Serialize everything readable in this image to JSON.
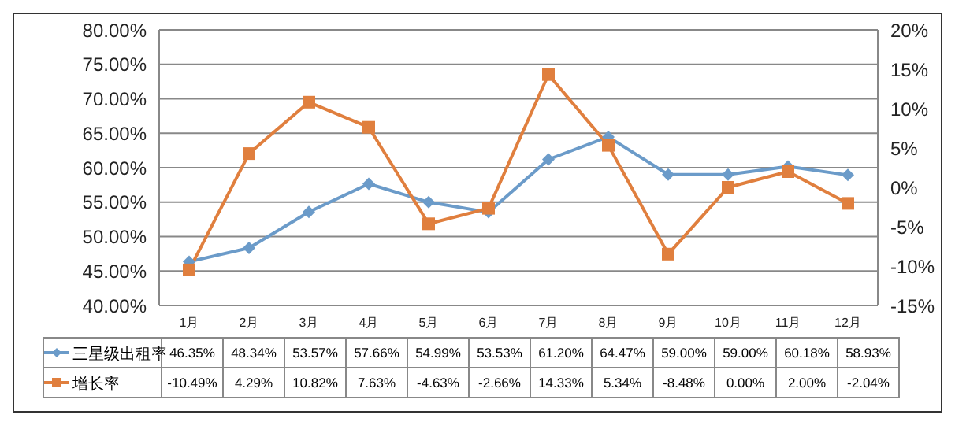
{
  "chart_data": {
    "type": "line",
    "categories": [
      "1月",
      "2月",
      "3月",
      "4月",
      "5月",
      "6月",
      "7月",
      "8月",
      "9月",
      "10月",
      "11月",
      "12月"
    ],
    "series": [
      {
        "name": "三星级出租率",
        "color": "#6b9bc9",
        "marker": "diamond",
        "values": [
          46.35,
          48.34,
          53.57,
          57.66,
          54.99,
          53.53,
          61.2,
          64.47,
          59.0,
          59.0,
          60.18,
          58.93
        ],
        "value_labels": [
          "46.35%",
          "48.34%",
          "53.57%",
          "57.66%",
          "54.99%",
          "53.53%",
          "61.20%",
          "64.47%",
          "59.00%",
          "59.00%",
          "60.18%",
          "58.93%"
        ]
      },
      {
        "name": "增长率",
        "color": "#e07f3e",
        "marker": "square",
        "axis": "y2",
        "values": [
          -10.49,
          4.29,
          10.82,
          7.63,
          -4.63,
          -2.66,
          14.33,
          5.34,
          -8.48,
          0.0,
          2.0,
          -2.04
        ],
        "value_labels": [
          "-10.49%",
          "4.29%",
          "10.82%",
          "7.63%",
          "-4.63%",
          "-2.66%",
          "14.33%",
          "5.34%",
          "-8.48%",
          "0.00%",
          "2.00%",
          "-2.04%"
        ]
      }
    ],
    "ylim": [
      40,
      80
    ],
    "yticks": [
      {
        "value": 40,
        "label": "40.00%"
      },
      {
        "value": 45,
        "label": "45.00%"
      },
      {
        "value": 50,
        "label": "50.00%"
      },
      {
        "value": 55,
        "label": "55.00%"
      },
      {
        "value": 60,
        "label": "60.00%"
      },
      {
        "value": 65,
        "label": "65.00%"
      },
      {
        "value": 70,
        "label": "70.00%"
      },
      {
        "value": 75,
        "label": "75.00%"
      },
      {
        "value": 80,
        "label": "80.00%"
      }
    ],
    "y2lim": [
      -15,
      20
    ],
    "y2ticks": [
      {
        "value": -15,
        "label": "-15%"
      },
      {
        "value": -10,
        "label": "-10%"
      },
      {
        "value": -5,
        "label": "-5%"
      },
      {
        "value": 0,
        "label": "0%"
      },
      {
        "value": 5,
        "label": "5%"
      },
      {
        "value": 10,
        "label": "10%"
      },
      {
        "value": 15,
        "label": "15%"
      },
      {
        "value": 20,
        "label": "20%"
      }
    ],
    "grid": "y",
    "legend": "bottom"
  }
}
